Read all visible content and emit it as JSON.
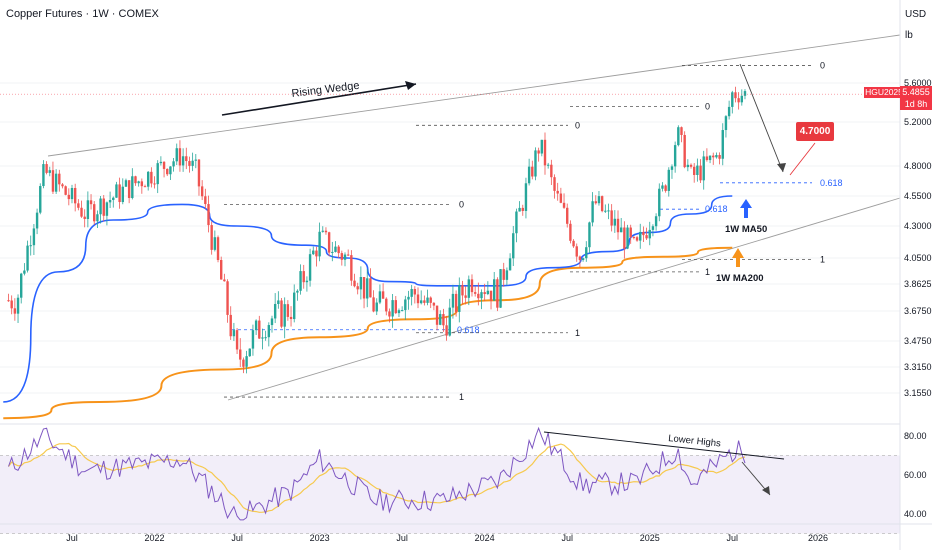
{
  "header": {
    "symbol": "Copper Futures",
    "interval": "1W",
    "exchange": "COMEX",
    "currency": "USD",
    "unit": "lb"
  },
  "last_price": {
    "contract": "HGU2025",
    "value": "5.4855",
    "countdown": "1d 8h"
  },
  "target_label": "4.7000",
  "colors": {
    "up": "#26a69a",
    "down": "#ef5350",
    "ma50": "#2962ff",
    "ma200": "#f7931a",
    "rsi": "#7e57c2",
    "rsi_ma": "#f6c94e",
    "wedge": "#9e9e9e",
    "target_bg": "#e8393f",
    "fib": "#2962ff"
  },
  "annotations": {
    "rising_wedge": "Rising Wedge",
    "ma50_label": "1W MA50",
    "ma200_label": "1W MA200",
    "lower_highs": "Lower Highs",
    "fib_levels": [
      {
        "label": "0",
        "price": 5.78
      },
      {
        "label": "0",
        "price": 5.36
      },
      {
        "label": "0",
        "price": 5.17
      },
      {
        "label": "0",
        "price": 4.48
      },
      {
        "label": "0.618",
        "price": 4.66
      },
      {
        "label": "0.618",
        "price": 4.44
      },
      {
        "label": "0.618",
        "price": 3.55
      },
      {
        "label": "1",
        "price": 4.04
      },
      {
        "label": "1",
        "price": 3.95
      },
      {
        "label": "1",
        "price": 3.53
      },
      {
        "label": "1",
        "price": 3.13
      }
    ]
  },
  "chart_data": {
    "type": "candlestick",
    "price_axis": {
      "ticks": [
        "5.6000",
        "5.2000",
        "4.8000",
        "4.5500",
        "4.3000",
        "4.0500",
        "3.8625",
        "3.6750",
        "3.4750",
        "3.3150",
        "3.1550"
      ],
      "range": [
        3.02,
        5.95
      ]
    },
    "rsi_axis": {
      "ticks": [
        "80.00",
        "60.00",
        "40.00"
      ],
      "range": [
        36,
        85
      ],
      "band": [
        30,
        70
      ]
    },
    "time_axis": {
      "ticks": [
        "Jul",
        "2022",
        "Jul",
        "2023",
        "Jul",
        "2024",
        "Jul",
        "2025",
        "Jul",
        "2026"
      ],
      "anchors": [
        {
          "date": "2021-07",
          "week": 0
        },
        {
          "date": "2022-01",
          "week": 26
        },
        {
          "date": "2026-01",
          "week": 235
        }
      ]
    },
    "ohlc_anchors": [
      {
        "date": "2021-03",
        "close": 3.75
      },
      {
        "date": "2021-05",
        "close": 4.75
      },
      {
        "date": "2021-08",
        "close": 4.4
      },
      {
        "date": "2022-03",
        "close": 4.9
      },
      {
        "date": "2022-04",
        "close": 4.75
      },
      {
        "date": "2022-07",
        "close": 3.35
      },
      {
        "date": "2022-09",
        "close": 3.6
      },
      {
        "date": "2022-11",
        "close": 3.7
      },
      {
        "date": "2023-01",
        "close": 4.2
      },
      {
        "date": "2023-03",
        "close": 4.05
      },
      {
        "date": "2023-05",
        "close": 3.7
      },
      {
        "date": "2023-08",
        "close": 3.8
      },
      {
        "date": "2023-10",
        "close": 3.58
      },
      {
        "date": "2023-12",
        "close": 3.9
      },
      {
        "date": "2024-02",
        "close": 3.8
      },
      {
        "date": "2024-05",
        "close": 5.0
      },
      {
        "date": "2024-06",
        "close": 4.6
      },
      {
        "date": "2024-08",
        "close": 4.05
      },
      {
        "date": "2024-09",
        "close": 4.5
      },
      {
        "date": "2024-12",
        "close": 4.1
      },
      {
        "date": "2025-02",
        "close": 4.6
      },
      {
        "date": "2025-03",
        "close": 5.1
      },
      {
        "date": "2025-04",
        "close": 4.7
      },
      {
        "date": "2025-06",
        "close": 4.9
      },
      {
        "date": "2025-07",
        "close": 5.49
      }
    ],
    "series": [
      {
        "name": "1W MA50",
        "values": [
          {
            "date": "2021-02",
            "value": 3.1
          },
          {
            "date": "2021-06",
            "value": 3.95
          },
          {
            "date": "2021-10",
            "value": 4.35
          },
          {
            "date": "2022-03",
            "value": 4.48
          },
          {
            "date": "2022-07",
            "value": 4.3
          },
          {
            "date": "2022-12",
            "value": 4.15
          },
          {
            "date": "2023-03",
            "value": 4.05
          },
          {
            "date": "2023-06",
            "value": 3.88
          },
          {
            "date": "2023-10",
            "value": 3.85
          },
          {
            "date": "2024-02",
            "value": 3.85
          },
          {
            "date": "2024-06",
            "value": 3.98
          },
          {
            "date": "2024-10",
            "value": 4.1
          },
          {
            "date": "2025-01",
            "value": 4.25
          },
          {
            "date": "2025-04",
            "value": 4.4
          },
          {
            "date": "2025-07",
            "value": 4.55
          }
        ]
      },
      {
        "name": "1W MA200",
        "values": [
          {
            "date": "2021-02",
            "value": 3.0
          },
          {
            "date": "2021-09",
            "value": 3.1
          },
          {
            "date": "2022-06",
            "value": 3.3
          },
          {
            "date": "2023-01",
            "value": 3.5
          },
          {
            "date": "2023-08",
            "value": 3.62
          },
          {
            "date": "2024-02",
            "value": 3.75
          },
          {
            "date": "2024-08",
            "value": 3.98
          },
          {
            "date": "2025-02",
            "value": 4.06
          },
          {
            "date": "2025-07",
            "value": 4.13
          }
        ]
      },
      {
        "name": "RSI",
        "values": [
          {
            "date": "2021-02",
            "value": 60
          },
          {
            "date": "2021-05",
            "value": 80
          },
          {
            "date": "2021-08",
            "value": 62
          },
          {
            "date": "2022-03",
            "value": 68
          },
          {
            "date": "2022-07",
            "value": 38
          },
          {
            "date": "2022-11",
            "value": 52
          },
          {
            "date": "2023-01",
            "value": 68
          },
          {
            "date": "2023-05",
            "value": 47
          },
          {
            "date": "2023-10",
            "value": 47
          },
          {
            "date": "2024-02",
            "value": 57
          },
          {
            "date": "2024-05",
            "value": 82
          },
          {
            "date": "2024-08",
            "value": 55
          },
          {
            "date": "2024-12",
            "value": 56
          },
          {
            "date": "2025-03",
            "value": 73
          },
          {
            "date": "2025-04",
            "value": 55
          },
          {
            "date": "2025-07",
            "value": 72
          }
        ]
      }
    ]
  }
}
